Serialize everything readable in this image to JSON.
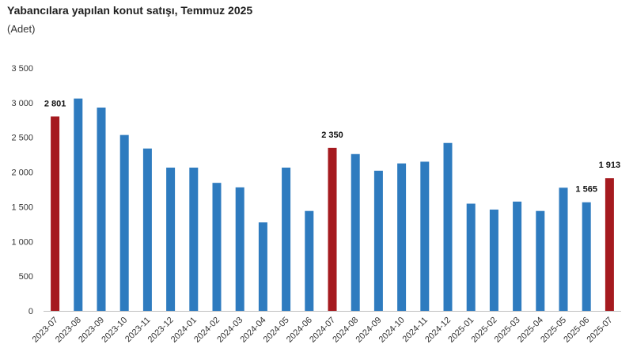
{
  "title": "Yabancılara yapılan konut satışı, Temmuz 2025",
  "subtitle": "(Adet)",
  "colors": {
    "normal": "#2e7bbf",
    "highlight": "#a51a1f",
    "axis": "#bfbfbf"
  },
  "chart_data": {
    "type": "bar",
    "categories": [
      "2023-07",
      "2023-08",
      "2023-09",
      "2023-10",
      "2023-11",
      "2023-12",
      "2024-01",
      "2024-02",
      "2024-03",
      "2024-04",
      "2024-05",
      "2024-06",
      "2024-07",
      "2024-08",
      "2024-09",
      "2024-10",
      "2024-11",
      "2024-12",
      "2025-01",
      "2025-02",
      "2025-03",
      "2025-04",
      "2025-05",
      "2025-06",
      "2025-07"
    ],
    "values": [
      2801,
      3060,
      2930,
      2535,
      2340,
      2065,
      2065,
      1845,
      1780,
      1275,
      2065,
      1440,
      2350,
      2260,
      2020,
      2125,
      2150,
      2420,
      1545,
      1460,
      1575,
      1440,
      1775,
      1565,
      1913
    ],
    "highlighted": [
      "2023-07",
      "2024-07",
      "2025-07"
    ],
    "labels": [
      {
        "category": "2023-07",
        "text": "2 801"
      },
      {
        "category": "2024-07",
        "text": "2 350"
      },
      {
        "category": "2025-06",
        "text": "1 565"
      },
      {
        "category": "2025-07",
        "text": "1 913"
      }
    ],
    "yticks": [
      {
        "value": 0,
        "label": "0"
      },
      {
        "value": 500,
        "label": "500"
      },
      {
        "value": 1000,
        "label": "1 000"
      },
      {
        "value": 1500,
        "label": "1 500"
      },
      {
        "value": 2000,
        "label": "2 000"
      },
      {
        "value": 2500,
        "label": "2 500"
      },
      {
        "value": 3000,
        "label": "3 000"
      },
      {
        "value": 3500,
        "label": "3 500"
      }
    ],
    "ylim": [
      0,
      3500
    ],
    "grid": false,
    "legend": "none"
  }
}
